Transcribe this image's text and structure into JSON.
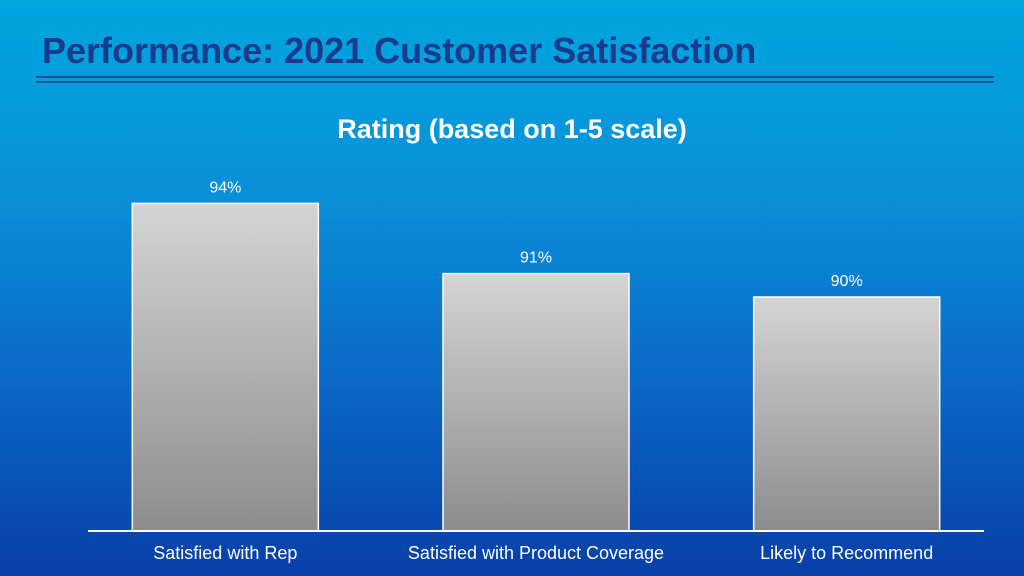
{
  "slide": {
    "title": "Performance: 2021 Customer Satisfaction"
  },
  "colors": {
    "title": "#1a3a8c",
    "bar_top": "#d4d4d4",
    "bar_bottom": "#8c8c8c",
    "bar_stroke": "#ffffff",
    "text": "#ffffff"
  },
  "chart_data": {
    "type": "bar",
    "title": "Rating (based on 1-5 scale)",
    "categories": [
      "Satisfied with Rep",
      "Satisfied with Product Coverage",
      "Likely to Recommend"
    ],
    "values": [
      94,
      91,
      90
    ],
    "value_labels": [
      "94%",
      "91%",
      "90%"
    ],
    "ylim": [
      80,
      95
    ],
    "xlabel": "",
    "ylabel": "",
    "grid": false,
    "legend": "none"
  }
}
